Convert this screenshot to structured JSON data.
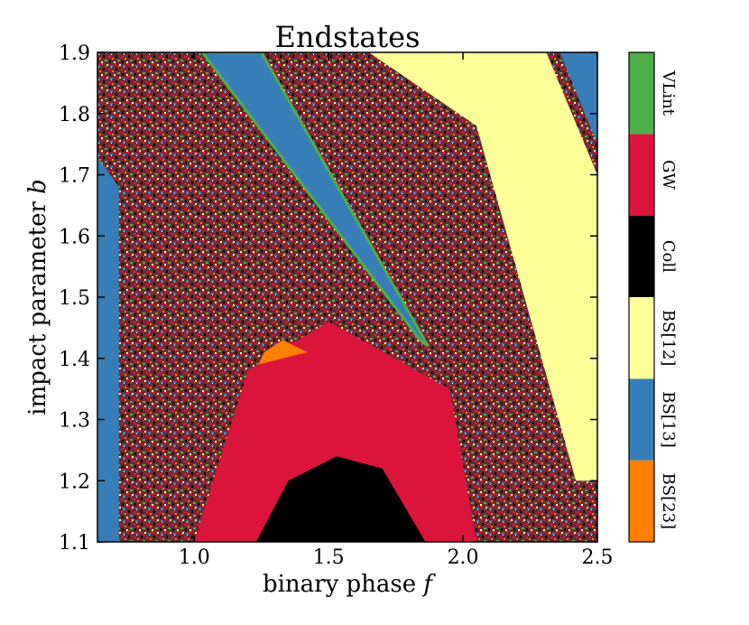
{
  "chart_data": {
    "type": "heatmap",
    "title": "Endstates",
    "xlabel": "binary phase",
    "xlabel_symbol": "f",
    "ylabel": "impact parameter",
    "ylabel_symbol": "b",
    "xlim": [
      0.64,
      2.5
    ],
    "ylim": [
      1.1,
      1.9
    ],
    "x_ticks": [
      1.0,
      1.5,
      2.0,
      2.5
    ],
    "x_tick_labels": [
      "1.0",
      "1.5",
      "2.0",
      "2.5"
    ],
    "y_ticks": [
      1.1,
      1.2,
      1.3,
      1.4,
      1.5,
      1.6,
      1.7,
      1.8,
      1.9
    ],
    "y_tick_labels": [
      "1.1",
      "1.2",
      "1.3",
      "1.4",
      "1.5",
      "1.6",
      "1.7",
      "1.8",
      "1.9"
    ],
    "categories": [
      {
        "label": "BS[23]",
        "color": "#ff7f00"
      },
      {
        "label": "BS[13]",
        "color": "#377eb8"
      },
      {
        "label": "BS[12]",
        "color": "#ffff99"
      },
      {
        "label": "Coll",
        "color": "#000000"
      },
      {
        "label": "GW",
        "color": "#dc143c"
      },
      {
        "label": "VLint",
        "color": "#4daf4a"
      }
    ],
    "regions": [
      {
        "category": "BS[13]",
        "description": "left strip",
        "polygon": [
          [
            0.64,
            1.1
          ],
          [
            0.72,
            1.1
          ],
          [
            0.72,
            1.68
          ],
          [
            0.64,
            1.73
          ]
        ]
      },
      {
        "category": "BS[13]",
        "description": "diagonal tongue with green edge",
        "polygon": [
          [
            1.03,
            1.9
          ],
          [
            1.25,
            1.9
          ],
          [
            1.87,
            1.42
          ],
          [
            1.84,
            1.43
          ]
        ]
      },
      {
        "category": "BS[12]",
        "description": "large right band",
        "polygon": [
          [
            1.65,
            1.9
          ],
          [
            2.31,
            1.9
          ],
          [
            2.5,
            1.7
          ],
          [
            2.5,
            1.2
          ],
          [
            2.42,
            1.2
          ],
          [
            2.05,
            1.78
          ]
        ]
      },
      {
        "category": "BS[13]",
        "description": "top-right corner",
        "polygon": [
          [
            2.36,
            1.9
          ],
          [
            2.5,
            1.9
          ],
          [
            2.5,
            1.75
          ]
        ]
      },
      {
        "category": "GW",
        "description": "main dome",
        "polygon": [
          [
            1.0,
            1.1
          ],
          [
            2.05,
            1.1
          ],
          [
            1.95,
            1.35
          ],
          [
            1.5,
            1.46
          ],
          [
            1.2,
            1.38
          ]
        ]
      },
      {
        "category": "Coll",
        "description": "bottom dome",
        "polygon": [
          [
            1.23,
            1.1
          ],
          [
            1.86,
            1.1
          ],
          [
            1.7,
            1.22
          ],
          [
            1.53,
            1.24
          ],
          [
            1.35,
            1.2
          ]
        ]
      },
      {
        "category": "BS[23]",
        "description": "sliver on dome",
        "polygon": [
          [
            1.24,
            1.39
          ],
          [
            1.42,
            1.41
          ],
          [
            1.33,
            1.43
          ],
          [
            1.26,
            1.41
          ]
        ]
      }
    ]
  }
}
